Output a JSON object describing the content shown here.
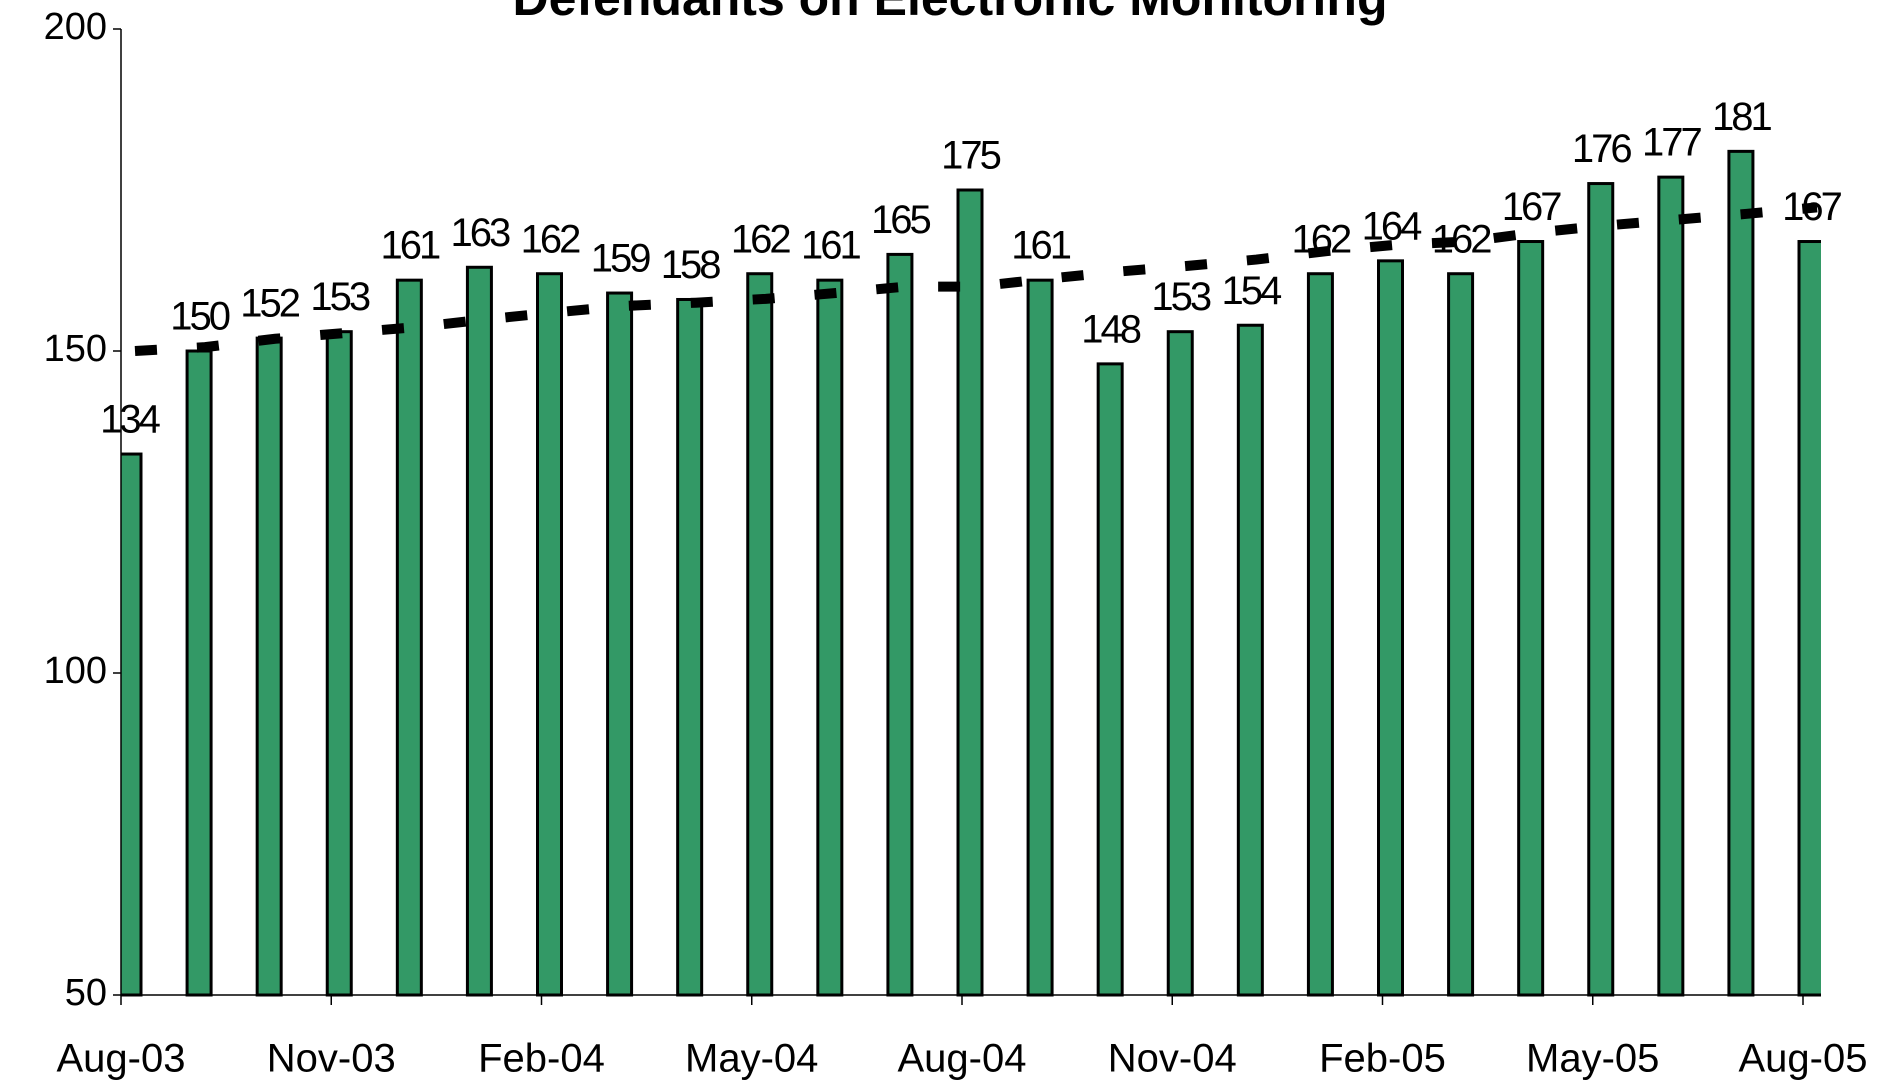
{
  "chart_data": {
    "type": "bar",
    "title": "Defendants on Electronic Monitoring",
    "categories": [
      "Aug-03",
      null,
      null,
      "Nov-03",
      null,
      null,
      "Feb-04",
      null,
      null,
      "May-04",
      null,
      null,
      "Aug-04",
      null,
      null,
      "Nov-04",
      null,
      null,
      "Feb-05",
      null,
      null,
      "May-05",
      null,
      null,
      "Aug-05"
    ],
    "series": [
      {
        "type": "bar",
        "color": "#339966",
        "values": [
          134,
          150,
          152,
          153,
          161,
          163,
          162,
          159,
          158,
          162,
          161,
          165,
          175,
          161,
          148,
          153,
          154,
          162,
          164,
          162,
          167,
          176,
          177,
          181,
          167
        ]
      },
      {
        "type": "line",
        "color": "#000000",
        "values": [
          150,
          150.6,
          151.9,
          152.8,
          153.7,
          154.9,
          156,
          157,
          157.5,
          158.1,
          159,
          160,
          160,
          161.2,
          162.3,
          163.2,
          164.2,
          165.5,
          166.5,
          167,
          168.4,
          169.5,
          170.4,
          171.3,
          172.3
        ]
      }
    ],
    "ylim": [
      50,
      200
    ],
    "yticks": [
      50,
      100,
      150,
      200
    ]
  }
}
